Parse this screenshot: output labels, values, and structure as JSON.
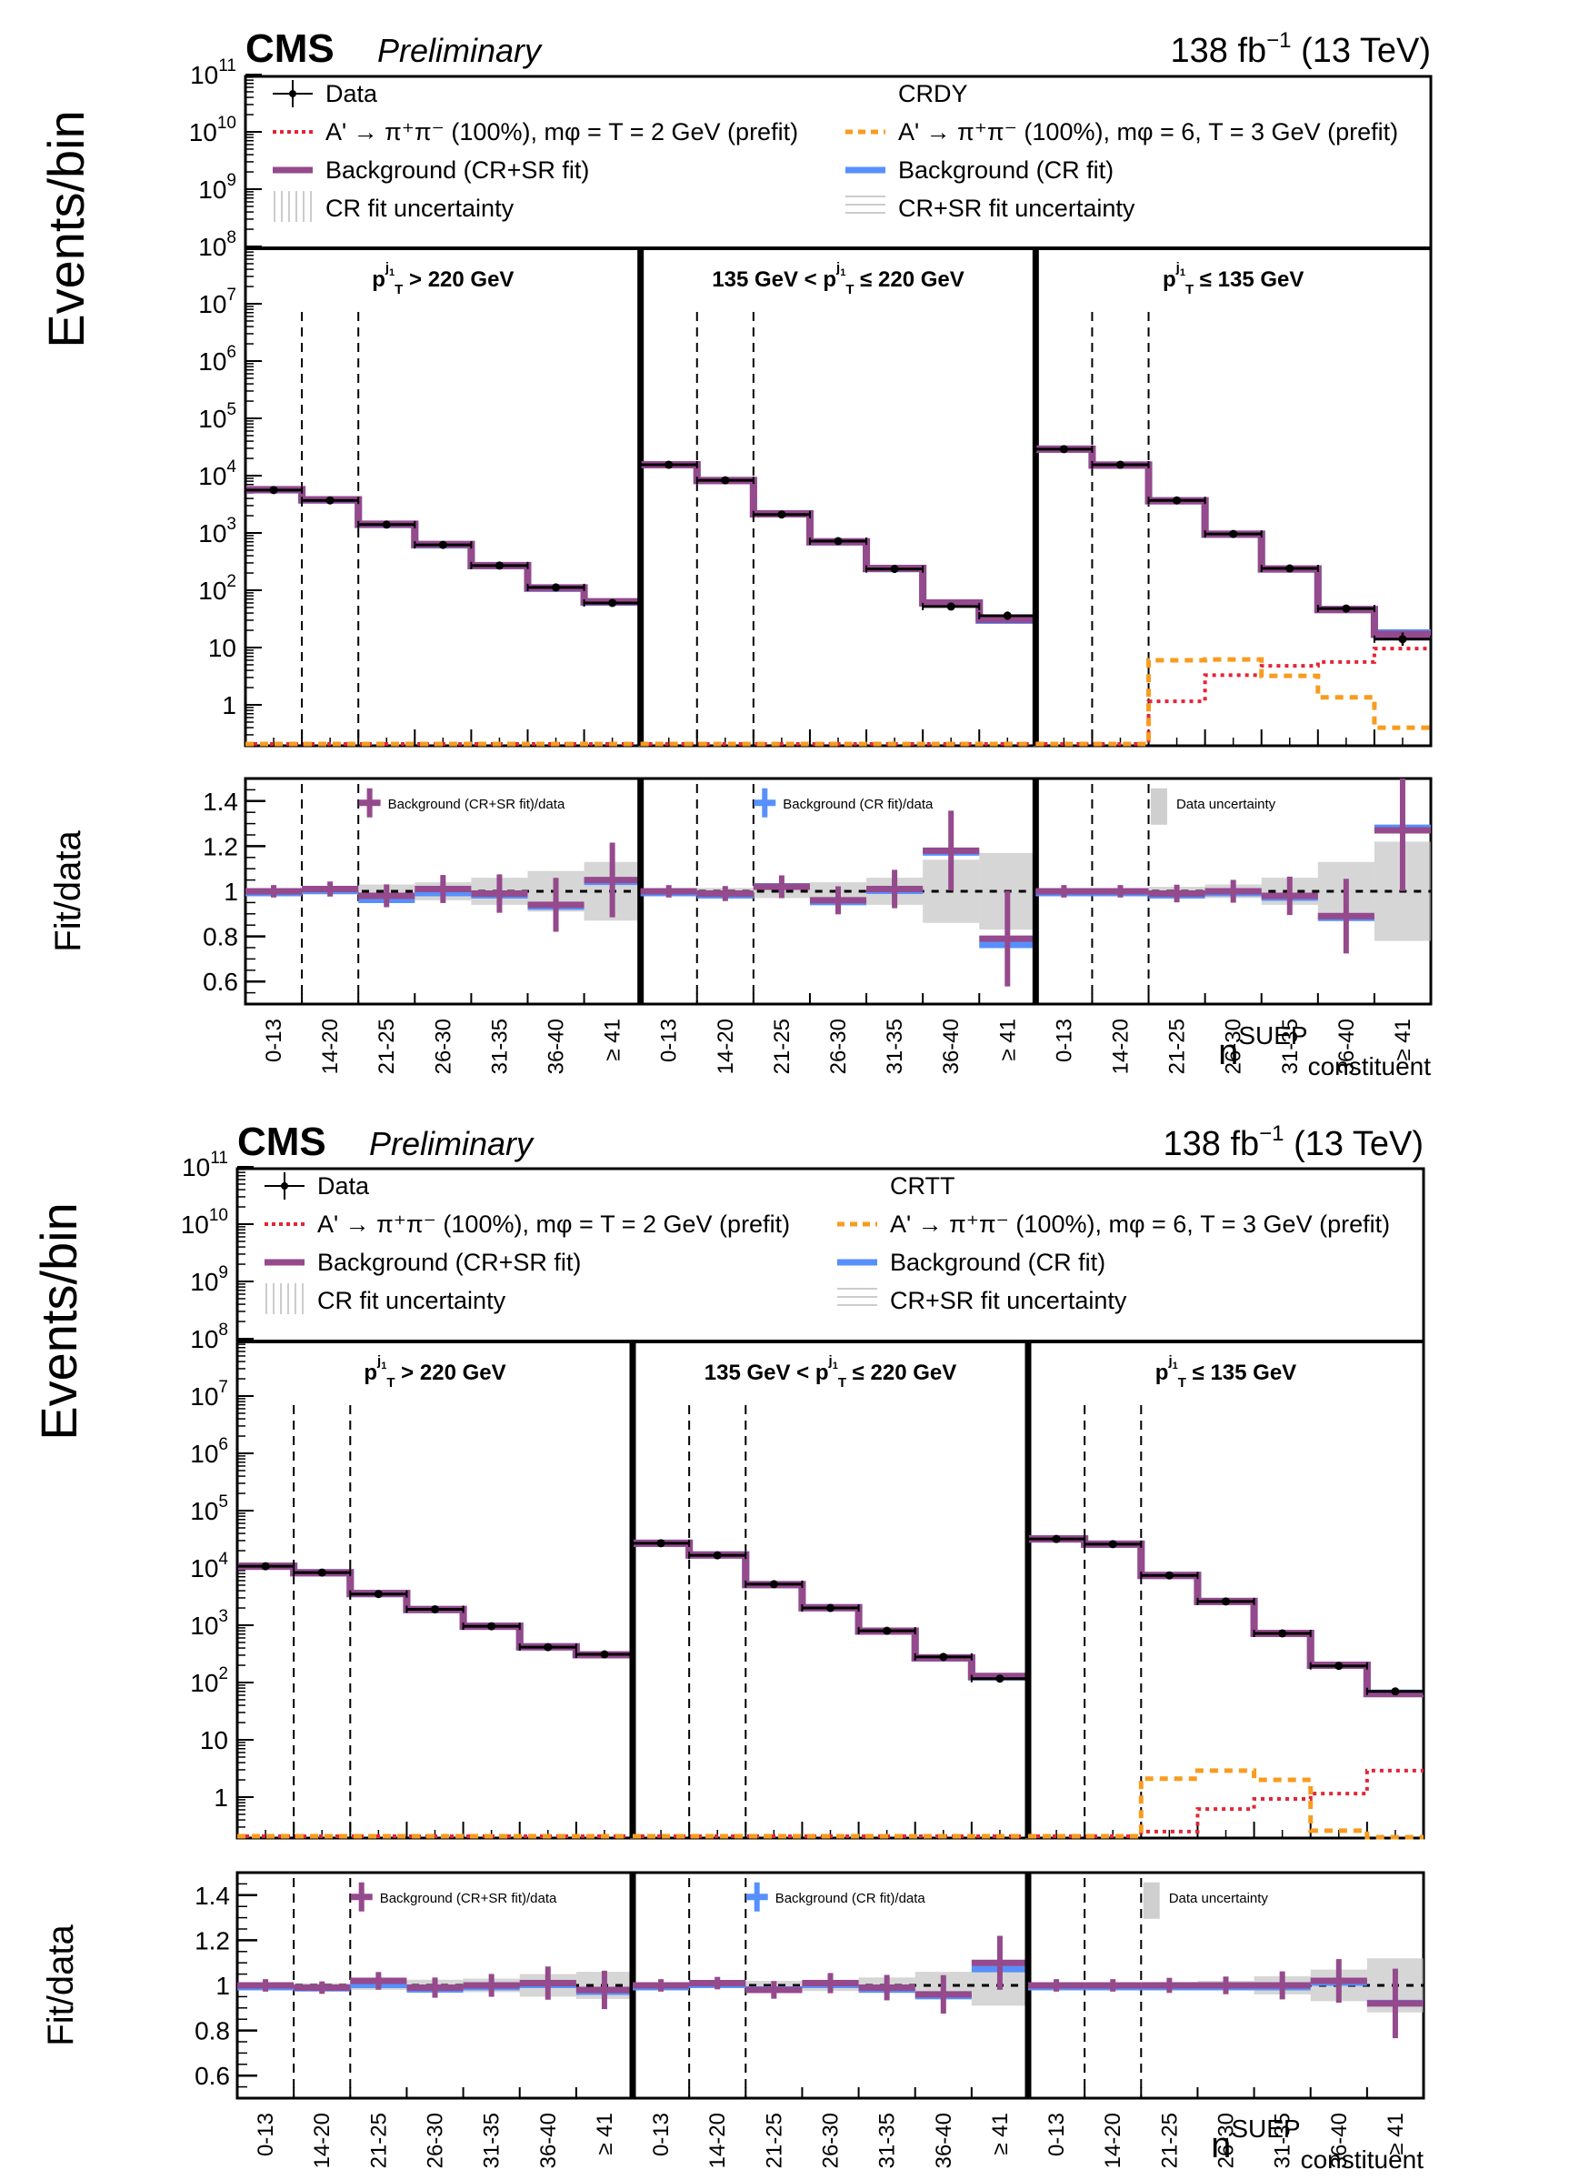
{
  "chart_data": [
    {
      "type": "bar",
      "subtype": "stepped-histogram-with-ratio",
      "title": "CMS Preliminary",
      "experiment": "CMS",
      "status": "Preliminary",
      "lumi_label": "138 fb",
      "lumi_exp": "−1",
      "energy_label": "(13 TeV)",
      "region_label": "CRDY",
      "ylabel": "Events/bin",
      "ratio_ylabel": "Fit/data",
      "xlabel_main": "n",
      "xlabel_sup": "SUEP",
      "xlabel_sub": "constituent",
      "yscale": "log",
      "ylim": [
        0.2,
        100000000000.0
      ],
      "ratio_ylim": [
        0.5,
        1.5
      ],
      "ytick_labels": [
        "1",
        "10",
        "10^2",
        "10^3",
        "10^4",
        "10^5",
        "10^6",
        "10^7",
        "10^8",
        "10^9",
        "10^10",
        "10^11"
      ],
      "ratio_ytick_labels": [
        "0.6",
        "0.8",
        "1",
        "1.2",
        "1.4"
      ],
      "categories": [
        "0-13",
        "14-20",
        "21-25",
        "26-30",
        "31-35",
        "36-40",
        "≥ 41"
      ],
      "panels": [
        {
          "label_pre": "",
          "label_var": "p",
          "label_sup": "j₁",
          "label_sub": "T",
          "label_post": " > 220 GeV",
          "data": [
            5600,
            3700,
            1400,
            620,
            270,
            112,
            60
          ],
          "bkg_crsr": [
            5700,
            3800,
            1420,
            630,
            270,
            110,
            63
          ],
          "bkg_cr": [
            5650,
            3750,
            1400,
            620,
            268,
            108,
            62
          ],
          "sig_m2": [
            0,
            0,
            0,
            0,
            0,
            0,
            0
          ],
          "sig_m6": [
            0,
            0,
            0,
            0,
            0,
            0,
            0
          ],
          "ratio_crsr": [
            1.0,
            1.01,
            0.98,
            1.01,
            0.99,
            0.94,
            1.05
          ],
          "ratio_cr": [
            1.0,
            1.01,
            0.97,
            1.0,
            0.99,
            0.94,
            1.05
          ],
          "ratio_err": [
            0.01,
            0.015,
            0.03,
            0.04,
            0.06,
            0.09,
            0.13
          ]
        },
        {
          "label_pre": "135 GeV < ",
          "label_var": "p",
          "label_sup": "j₁",
          "label_sub": "T",
          "label_post": " ≤ 220 GeV",
          "data": [
            15500,
            8300,
            2100,
            720,
            235,
            52,
            36
          ],
          "bkg_crsr": [
            15500,
            8200,
            2150,
            700,
            240,
            60,
            31
          ],
          "bkg_cr": [
            15500,
            8200,
            2160,
            700,
            238,
            60,
            30
          ],
          "sig_m2": [
            0,
            0,
            0,
            0,
            0,
            0,
            0
          ],
          "sig_m6": [
            0,
            0,
            0,
            0,
            0,
            0,
            0
          ],
          "ratio_crsr": [
            1.0,
            0.99,
            1.02,
            0.96,
            1.01,
            1.18,
            0.79
          ],
          "ratio_cr": [
            1.0,
            0.99,
            1.03,
            0.96,
            1.01,
            1.18,
            0.77
          ],
          "ratio_err": [
            0.01,
            0.015,
            0.03,
            0.04,
            0.06,
            0.14,
            0.17
          ]
        },
        {
          "label_pre": "",
          "label_var": "p",
          "label_sup": "j₁",
          "label_sub": "T",
          "label_post": " ≤ 135 GeV",
          "data": [
            29000,
            15500,
            3700,
            960,
            240,
            48,
            14
          ],
          "bkg_crsr": [
            29000,
            15300,
            3650,
            950,
            235,
            46,
            17
          ],
          "bkg_cr": [
            29000,
            15300,
            3650,
            950,
            235,
            46,
            18
          ],
          "sig_m2": [
            0,
            0,
            1.15,
            3.3,
            4.8,
            5.6,
            9.6
          ],
          "sig_m6": [
            0,
            0,
            6.0,
            6.2,
            3.2,
            1.35,
            0.4
          ],
          "ratio_crsr": [
            1.0,
            1.0,
            0.99,
            1.0,
            0.98,
            0.89,
            1.27
          ],
          "ratio_cr": [
            1.0,
            1.0,
            0.99,
            1.0,
            0.98,
            0.89,
            1.29
          ],
          "ratio_err": [
            0.01,
            0.01,
            0.02,
            0.03,
            0.06,
            0.13,
            0.22
          ]
        }
      ],
      "legend": {
        "data": "Data",
        "sig_m2": "A' → π⁺π⁻ (100%), mφ = T = 2 GeV (prefit)",
        "sig_m6": "A' → π⁺π⁻ (100%), mφ = 6, T = 3 GeV (prefit)",
        "bkg_crsr": "Background (CR+SR fit)",
        "bkg_cr": "Background (CR fit)",
        "unc_cr": "CR fit uncertainty",
        "unc_crsr": "CR+SR fit uncertainty",
        "ratio_crsr": "Background (CR+SR fit)/data",
        "ratio_cr": "Background (CR fit)/data",
        "ratio_unc": "Data uncertainty"
      },
      "legend_placement": "top"
    },
    {
      "type": "bar",
      "subtype": "stepped-histogram-with-ratio",
      "title": "CMS Preliminary",
      "experiment": "CMS",
      "status": "Preliminary",
      "lumi_label": "138 fb",
      "lumi_exp": "−1",
      "energy_label": "(13 TeV)",
      "region_label": "CRTT",
      "ylabel": "Events/bin",
      "ratio_ylabel": "Fit/data",
      "xlabel_main": "n",
      "xlabel_sup": "SUEP",
      "xlabel_sub": "constituent",
      "yscale": "log",
      "ylim": [
        0.2,
        100000000000.0
      ],
      "ratio_ylim": [
        0.5,
        1.5
      ],
      "ytick_labels": [
        "1",
        "10",
        "10^2",
        "10^3",
        "10^4",
        "10^5",
        "10^6",
        "10^7",
        "10^8",
        "10^9",
        "10^10",
        "10^11"
      ],
      "ratio_ytick_labels": [
        "0.6",
        "0.8",
        "1",
        "1.2",
        "1.4"
      ],
      "categories": [
        "0-13",
        "14-20",
        "21-25",
        "26-30",
        "31-35",
        "36-40",
        "≥ 41"
      ],
      "panels": [
        {
          "label_pre": "",
          "label_var": "p",
          "label_sup": "j₁",
          "label_sub": "T",
          "label_post": " > 220 GeV",
          "data": [
            10700,
            8300,
            3500,
            1900,
            960,
            415,
            310
          ],
          "bkg_crsr": [
            10700,
            8200,
            3570,
            1880,
            960,
            420,
            305
          ],
          "bkg_cr": [
            10700,
            8250,
            3560,
            1880,
            960,
            420,
            305
          ],
          "sig_m2": [
            0,
            0,
            0,
            0,
            0,
            0,
            0
          ],
          "sig_m6": [
            0,
            0,
            0,
            0,
            0,
            0,
            0
          ],
          "ratio_crsr": [
            1.0,
            0.99,
            1.02,
            0.99,
            1.0,
            1.01,
            0.98
          ],
          "ratio_cr": [
            1.0,
            0.995,
            1.01,
            0.99,
            1.0,
            1.01,
            0.98
          ],
          "ratio_err": [
            0.01,
            0.01,
            0.02,
            0.025,
            0.03,
            0.05,
            0.06
          ]
        },
        {
          "label_pre": "135 GeV < ",
          "label_var": "p",
          "label_sup": "j₁",
          "label_sub": "T",
          "label_post": " ≤ 220 GeV",
          "data": [
            27000,
            16600,
            5200,
            2000,
            800,
            280,
            117
          ],
          "bkg_crsr": [
            27000,
            16800,
            5100,
            2020,
            790,
            270,
            128
          ],
          "bkg_cr": [
            27000,
            16800,
            5120,
            2020,
            790,
            270,
            125
          ],
          "sig_m2": [
            0,
            0,
            0,
            0,
            0,
            0,
            0
          ],
          "sig_m6": [
            0,
            0,
            0,
            0,
            0,
            0,
            0
          ],
          "ratio_crsr": [
            1.0,
            1.01,
            0.98,
            1.01,
            0.99,
            0.96,
            1.1
          ],
          "ratio_cr": [
            1.0,
            1.01,
            0.99,
            1.01,
            0.99,
            0.96,
            1.08
          ],
          "ratio_err": [
            0.01,
            0.01,
            0.02,
            0.025,
            0.035,
            0.06,
            0.09
          ]
        },
        {
          "label_pre": "",
          "label_var": "p",
          "label_sup": "j₁",
          "label_sub": "T",
          "label_post": " ≤ 135 GeV",
          "data": [
            32000,
            26000,
            7400,
            2600,
            720,
            195,
            70
          ],
          "bkg_crsr": [
            32000,
            26000,
            7400,
            2600,
            720,
            200,
            64
          ],
          "bkg_cr": [
            32000,
            26000,
            7400,
            2600,
            720,
            200,
            65
          ],
          "sig_m2": [
            0,
            0,
            0.25,
            0.62,
            0.93,
            1.15,
            2.9
          ],
          "sig_m6": [
            0,
            0,
            2.1,
            2.9,
            2.0,
            0.26,
            0.2
          ],
          "ratio_crsr": [
            1.0,
            1.0,
            1.0,
            1.0,
            1.0,
            1.02,
            0.92
          ],
          "ratio_cr": [
            1.0,
            1.0,
            1.0,
            1.0,
            1.0,
            1.02,
            0.93
          ],
          "ratio_err": [
            0.01,
            0.01,
            0.015,
            0.02,
            0.04,
            0.07,
            0.12
          ]
        }
      ],
      "legend": {
        "data": "Data",
        "sig_m2": "A' → π⁺π⁻ (100%), mφ = T = 2 GeV (prefit)",
        "sig_m6": "A' → π⁺π⁻ (100%), mφ = 6, T = 3 GeV (prefit)",
        "bkg_crsr": "Background (CR+SR fit)",
        "bkg_cr": "Background (CR fit)",
        "unc_cr": "CR fit uncertainty",
        "unc_crsr": "CR+SR fit uncertainty",
        "ratio_crsr": "Background (CR+SR fit)/data",
        "ratio_cr": "Background (CR fit)/data",
        "ratio_unc": "Data uncertainty"
      },
      "legend_placement": "top"
    }
  ],
  "colors": {
    "data": "#000000",
    "bkg_crsr": "#944A8C",
    "bkg_cr": "#5790FC",
    "sig_m2": "#E42536",
    "sig_m6": "#F89C20",
    "uncertainty": "#BBBBBB"
  }
}
